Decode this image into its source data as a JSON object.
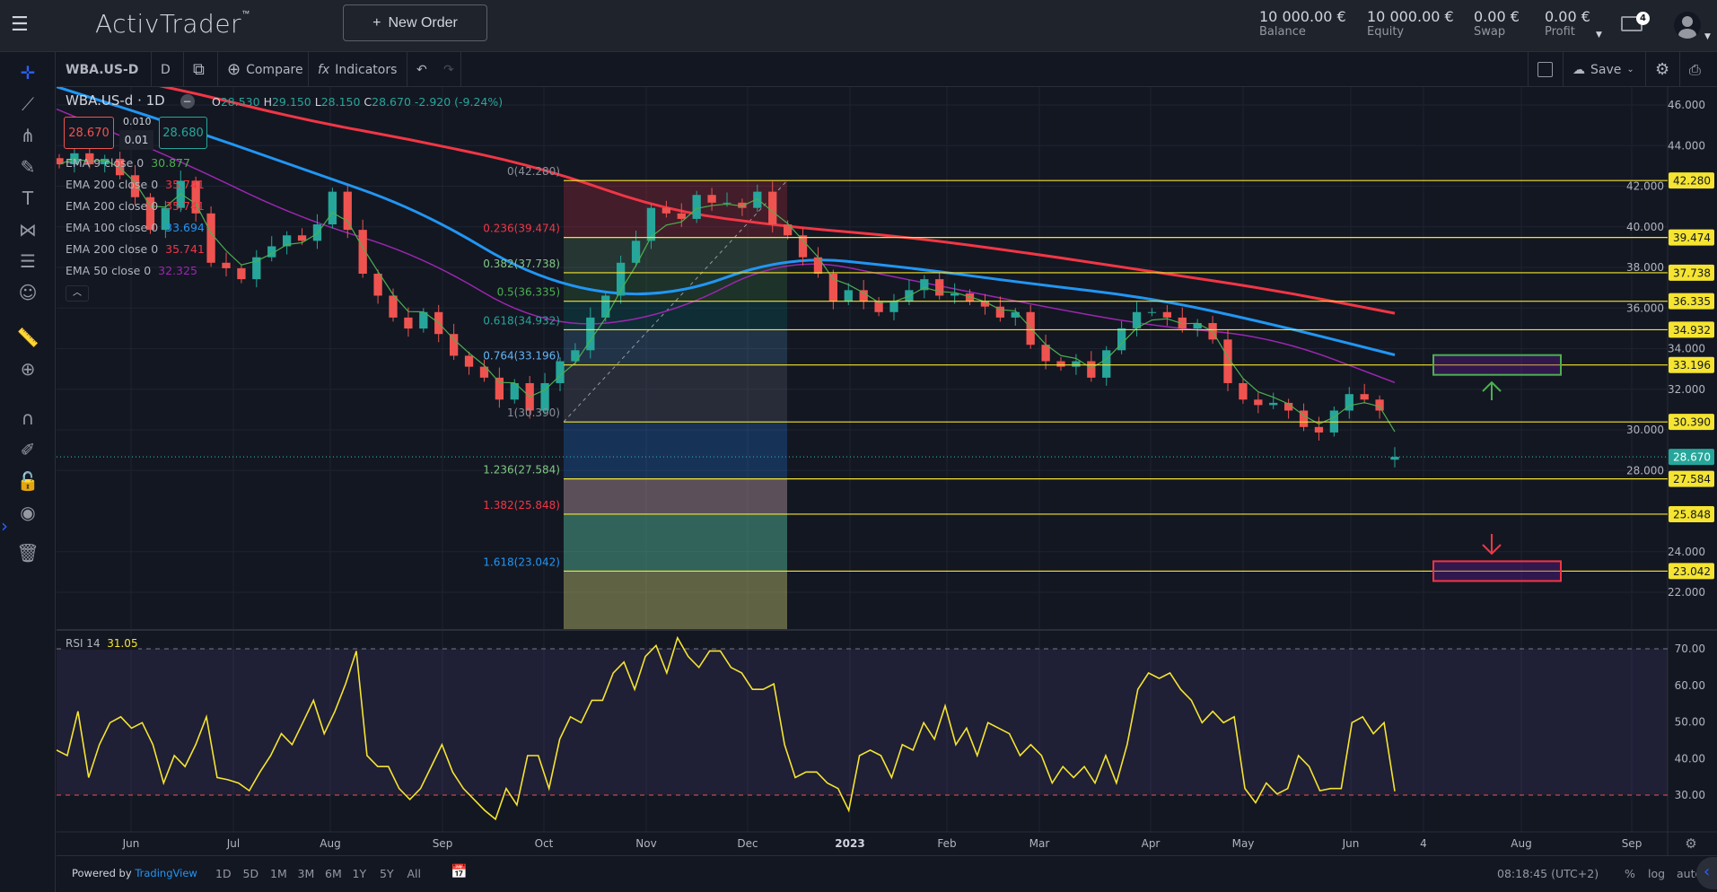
{
  "header": {
    "logo": "ActivTrader",
    "logo_tm": "™",
    "new_order_label": "New Order",
    "stats": [
      {
        "value": "10 000.00 €",
        "label": "Balance"
      },
      {
        "value": "10 000.00 €",
        "label": "Equity"
      },
      {
        "value": "0.00 €",
        "label": "Swap"
      },
      {
        "value": "0.00 €",
        "label": "Profit"
      }
    ],
    "mail_count": "4"
  },
  "toolbar": {
    "symbol": "WBA.US-D",
    "interval": "D",
    "compare": "Compare",
    "indicators": "Indicators",
    "save": "Save"
  },
  "legend": {
    "title": "WBA.US-d · 1D",
    "o_label": "O",
    "o": "28.530",
    "h_label": "H",
    "h": "29.150",
    "l_label": "L",
    "l": "28.150",
    "c_label": "C",
    "c": "28.670",
    "change": "-2.920 (-9.24%)",
    "sell": "28.670",
    "spread_top": "0.010",
    "spread": "0.01",
    "buy": "28.680",
    "emas": [
      {
        "label": "EMA 9 close 0",
        "value": "30.877",
        "color": "#4caf50"
      },
      {
        "label": "EMA 200 close 0",
        "value": "35.741",
        "color": "#f23645"
      },
      {
        "label": "EMA 200 close 0",
        "value": "35.741",
        "color": "#f23645"
      },
      {
        "label": "EMA 100 close 0",
        "value": "33.694",
        "color": "#2196f3"
      },
      {
        "label": "EMA 200 close 0",
        "value": "35.741",
        "color": "#f23645"
      },
      {
        "label": "EMA 50 close 0",
        "value": "32.325",
        "color": "#9c27b0"
      }
    ]
  },
  "colors": {
    "up": "#26a69a",
    "down": "#ef5350",
    "fib_line": "#f5e431",
    "current": "#26a69a",
    "rsi": "#f5e431"
  },
  "chart_data": {
    "type": "candlestick",
    "price_axis": {
      "ticks": [
        "46.000",
        "44.000",
        "42.000",
        "40.000",
        "38.000",
        "36.000",
        "34.000",
        "32.000",
        "30.000",
        "28.000",
        "24.000",
        "22.000"
      ],
      "range": [
        22,
        46
      ]
    },
    "time_axis": {
      "ticks": [
        "Jun",
        "Jul",
        "Aug",
        "Sep",
        "Oct",
        "Nov",
        "Dec",
        "2023",
        "Feb",
        "Mar",
        "Apr",
        "May",
        "Jun",
        "4",
        "Aug",
        "Sep"
      ]
    },
    "current_price": "28.670",
    "closes": [
      43.08,
      43.62,
      43.08,
      43.35,
      42.54,
      41.46,
      39.85,
      40.93,
      42.27,
      40.66,
      38.23,
      37.96,
      37.42,
      38.5,
      39.04,
      39.58,
      39.31,
      40.12,
      41.73,
      39.85,
      37.69,
      36.61,
      35.53,
      34.99,
      35.8,
      34.72,
      33.65,
      33.11,
      32.57,
      31.49,
      32.3,
      30.95,
      32.3,
      33.38,
      33.92,
      35.53,
      36.61,
      38.23,
      39.31,
      40.93,
      40.66,
      40.39,
      41.57,
      41.19,
      41.19,
      40.93,
      41.73,
      40.12,
      39.58,
      38.5,
      37.69,
      36.34,
      36.88,
      36.34,
      35.8,
      36.34,
      36.88,
      37.42,
      36.61,
      36.72,
      36.34,
      36.07,
      35.53,
      35.8,
      34.19,
      33.38,
      33.11,
      33.38,
      32.57,
      33.92,
      35.0,
      35.8,
      35.8,
      35.53,
      34.99,
      35.26,
      34.45,
      32.3,
      31.49,
      31.22,
      31.33,
      30.95,
      30.14,
      29.87,
      30.95,
      31.76,
      31.49,
      30.95,
      28.67
    ],
    "ema_series": [
      {
        "name": "EMA 200",
        "color": "#f23645",
        "values": [
          47.9,
          46.8,
          45.3,
          44.2,
          42.9,
          40.8,
          40.0,
          39.5,
          38.7,
          37.8,
          36.9,
          35.74
        ]
      },
      {
        "name": "EMA 100",
        "color": "#2196f3",
        "values": [
          46.9,
          45.0,
          42.9,
          40.8,
          37.2,
          36.4,
          38.6,
          38.0,
          37.2,
          36.5,
          35.2,
          33.69
        ]
      },
      {
        "name": "EMA 50",
        "color": "#9c27b0",
        "values": [
          45.8,
          43.3,
          40.4,
          38.6,
          35.0,
          35.5,
          38.6,
          37.4,
          36.2,
          35.1,
          34.6,
          32.33
        ]
      }
    ],
    "fib_levels": [
      {
        "ratio": "0",
        "price": 42.28,
        "label": "0(42.280)",
        "color": "#8a8f98",
        "fill": "rgba(242,54,69,0.22)"
      },
      {
        "ratio": "0.236",
        "price": 39.474,
        "label": "0.236(39.474)",
        "color": "#f23645",
        "fill": "rgba(129,199,132,0.18)"
      },
      {
        "ratio": "0.382",
        "price": 37.738,
        "label": "0.382(37.738)",
        "color": "#81c784",
        "fill": "rgba(76,175,80,0.18)"
      },
      {
        "ratio": "0.5",
        "price": 36.335,
        "label": "0.5(36.335)",
        "color": "#4caf50",
        "fill": "rgba(0,150,136,0.18)"
      },
      {
        "ratio": "0.618",
        "price": 34.932,
        "label": "0.618(34.932)",
        "color": "#26a69a",
        "fill": "rgba(100,181,246,0.18)"
      },
      {
        "ratio": "0.764",
        "price": 33.196,
        "label": "0.764(33.196)",
        "color": "#64b5f6",
        "fill": "rgba(140,140,160,0.18)"
      },
      {
        "ratio": "1",
        "price": 30.39,
        "label": "1(30.390)",
        "color": "#8a8f98",
        "fill": "rgba(33,110,200,0.32)"
      },
      {
        "ratio": "1.236",
        "price": 27.584,
        "label": "1.236(27.584)",
        "color": "#81c784",
        "fill": "rgba(190,160,170,0.42)"
      },
      {
        "ratio": "1.382",
        "price": 25.848,
        "label": "1.382(25.848)",
        "color": "#f23645",
        "fill": "rgba(80,175,145,0.5)"
      },
      {
        "ratio": "1.618",
        "price": 23.042,
        "label": "1.618(23.042)",
        "color": "#2196f3",
        "fill": "rgba(190,190,110,0.45)"
      }
    ],
    "targets": [
      {
        "kind": "take-profit-zone",
        "price": 33.196,
        "color": "#4caf50",
        "arrow": "up"
      },
      {
        "kind": "stop-zone",
        "price": 23.042,
        "color": "#f23645",
        "arrow": "down"
      }
    ],
    "rsi": {
      "label": "RSI 14",
      "value": "31.05",
      "levels": [
        70,
        30
      ],
      "ticks": [
        "70.00",
        "60.00",
        "50.00",
        "40.00",
        "30.00"
      ],
      "values": [
        42.3,
        40.8,
        52.9,
        34.8,
        43.8,
        49.8,
        51.4,
        48.3,
        49.8,
        43.8,
        33.3,
        40.8,
        37.8,
        43.8,
        51.4,
        34.8,
        34.2,
        33.3,
        31.2,
        36.3,
        40.8,
        46.8,
        43.8,
        49.8,
        55.9,
        46.8,
        52.9,
        60.4,
        69.4,
        40.8,
        37.8,
        37.8,
        31.8,
        28.8,
        31.8,
        37.8,
        43.8,
        36.3,
        31.8,
        28.8,
        25.8,
        23.4,
        31.8,
        27.3,
        40.8,
        40.8,
        31.8,
        45.3,
        51.4,
        49.8,
        55.9,
        55.9,
        63.4,
        66.4,
        58.9,
        67.9,
        70.9,
        63.4,
        73.0,
        67.9,
        64.9,
        69.4,
        69.4,
        64.9,
        63.4,
        58.9,
        58.9,
        60.4,
        43.8,
        34.8,
        36.3,
        36.3,
        33.3,
        31.8,
        25.8,
        40.8,
        42.3,
        40.8,
        34.8,
        43.8,
        42.3,
        49.8,
        45.3,
        54.4,
        43.8,
        48.3,
        40.8,
        49.8,
        48.3,
        46.8,
        40.8,
        43.8,
        40.8,
        33.3,
        37.8,
        34.8,
        37.8,
        33.3,
        40.8,
        33.3,
        43.8,
        58.9,
        63.4,
        61.9,
        63.4,
        58.9,
        55.9,
        49.8,
        52.9,
        49.8,
        51.4,
        31.8,
        27.9,
        33.3,
        30.3,
        31.8,
        40.8,
        37.8,
        31.2,
        31.8,
        31.8,
        49.8,
        51.4,
        46.8,
        49.8,
        31.05
      ]
    }
  },
  "bottom": {
    "powered": "Powered by",
    "brand": "TradingView",
    "ranges": [
      "1D",
      "5D",
      "1M",
      "3M",
      "6M",
      "1Y",
      "5Y",
      "All"
    ],
    "time": "08:18:45 (UTC+2)",
    "percent": "%",
    "log": "log",
    "auto": "auto"
  }
}
